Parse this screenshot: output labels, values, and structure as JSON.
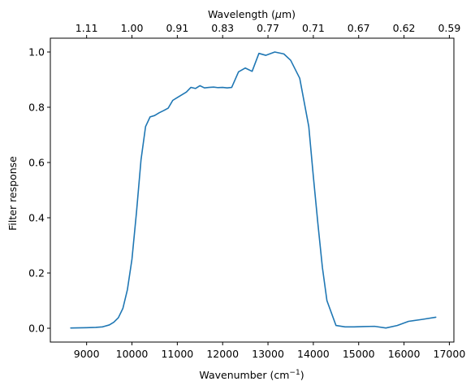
{
  "chart_data": {
    "type": "line",
    "title": "",
    "xlabel_main": "Wavenumber (cm",
    "xlabel_sup": "−1",
    "xlabel_close": ")",
    "ylabel": "Filter response",
    "top_xlabel_main": "Wavelength (",
    "top_xlabel_mu": "μ",
    "top_xlabel_close": "m)",
    "xlim": [
      8200,
      17100
    ],
    "ylim": [
      -0.05,
      1.05
    ],
    "xticks": [
      9000,
      10000,
      11000,
      12000,
      13000,
      14000,
      15000,
      16000,
      17000
    ],
    "xtick_labels": [
      "9000",
      "10000",
      "11000",
      "12000",
      "13000",
      "14000",
      "15000",
      "16000",
      "17000"
    ],
    "yticks": [
      0.0,
      0.2,
      0.4,
      0.6,
      0.8,
      1.0
    ],
    "ytick_labels": [
      "0.0",
      "0.2",
      "0.4",
      "0.6",
      "0.8",
      "1.0"
    ],
    "top_ticks": [
      9000,
      10000,
      11000,
      12000,
      13000,
      14000,
      15000,
      16000,
      17000
    ],
    "top_tick_labels": [
      "1.11",
      "1.00",
      "0.91",
      "0.83",
      "0.77",
      "0.71",
      "0.67",
      "0.62",
      "0.59"
    ],
    "grid": false,
    "line_color": "#1f77b4",
    "series": [
      {
        "x": [
          8650,
          9000,
          9200,
          9350,
          9500,
          9600,
          9700,
          9800,
          9900,
          10000,
          10100,
          10200,
          10300,
          10400,
          10500,
          10600,
          10700,
          10800,
          10900,
          11000,
          11100,
          11200,
          11300,
          11400,
          11500,
          11600,
          11700,
          11800,
          11900,
          12000,
          12100,
          12200,
          12350,
          12500,
          12650,
          12800,
          12950,
          13150,
          13350,
          13500,
          13700,
          13900,
          14000,
          14100,
          14200,
          14300,
          14500,
          14700,
          14900,
          15100,
          15350,
          15600,
          15850,
          16100,
          16400,
          16700
        ],
        "y": [
          0.001,
          0.002,
          0.003,
          0.005,
          0.012,
          0.022,
          0.038,
          0.072,
          0.14,
          0.25,
          0.42,
          0.61,
          0.73,
          0.765,
          0.77,
          0.78,
          0.788,
          0.797,
          0.825,
          0.835,
          0.845,
          0.855,
          0.872,
          0.868,
          0.878,
          0.87,
          0.872,
          0.873,
          0.871,
          0.872,
          0.87,
          0.872,
          0.928,
          0.942,
          0.93,
          0.995,
          0.988,
          1.0,
          0.993,
          0.97,
          0.905,
          0.73,
          0.55,
          0.38,
          0.22,
          0.1,
          0.01,
          0.005,
          0.005,
          0.006,
          0.007,
          0.001,
          0.01,
          0.025,
          0.032,
          0.04
        ]
      }
    ]
  }
}
